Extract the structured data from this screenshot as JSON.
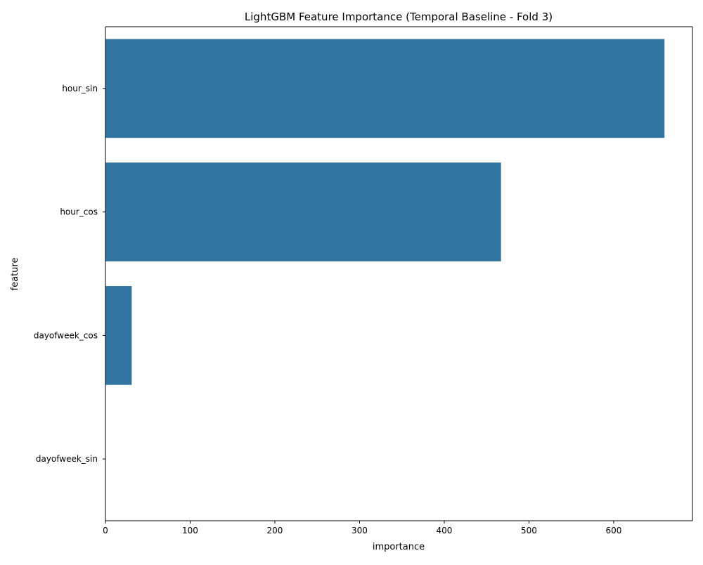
{
  "chart_data": {
    "type": "bar",
    "orientation": "horizontal",
    "title": "LightGBM Feature Importance (Temporal Baseline - Fold 3)",
    "xlabel": "importance",
    "ylabel": "feature",
    "categories": [
      "hour_sin",
      "hour_cos",
      "dayofweek_cos",
      "dayofweek_sin"
    ],
    "values": [
      660,
      467,
      31,
      0
    ],
    "xlim": [
      0,
      693
    ],
    "xticks": [
      0,
      100,
      200,
      300,
      400,
      500,
      600
    ],
    "xtick_labels": [
      "0",
      "100",
      "200",
      "300",
      "400",
      "500",
      "600"
    ],
    "bar_color": "#3274a1",
    "grid": false,
    "legend": "none"
  }
}
